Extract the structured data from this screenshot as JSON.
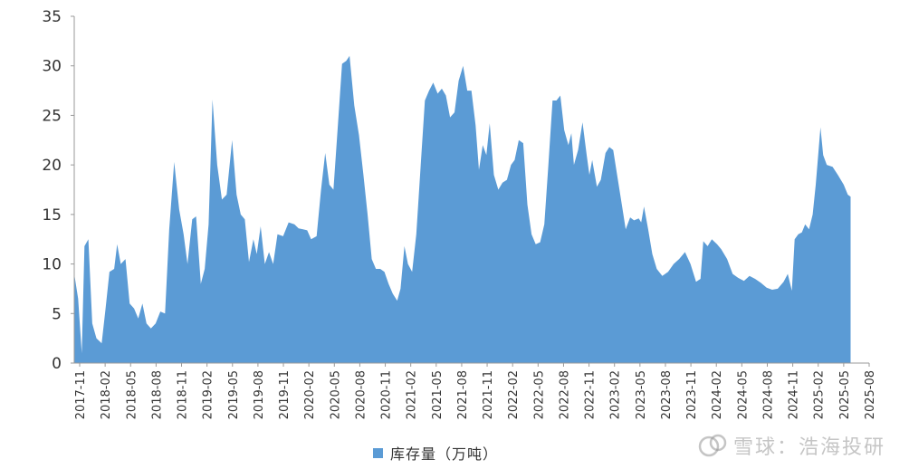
{
  "chart_data": {
    "type": "area",
    "ylim": [
      0,
      35
    ],
    "yticks": [
      0,
      5,
      10,
      15,
      20,
      25,
      30,
      35
    ],
    "xticks": [
      "2017-11",
      "2018-02",
      "2018-05",
      "2018-08",
      "2018-11",
      "2019-02",
      "2019-05",
      "2019-08",
      "2019-11",
      "2020-02",
      "2020-05",
      "2020-08",
      "2020-11",
      "2021-02",
      "2021-05",
      "2021-08",
      "2021-11",
      "2022-02",
      "2022-05",
      "2022-08",
      "2022-11",
      "2023-02",
      "2023-05",
      "2023-08",
      "2023-11",
      "2024-02",
      "2024-05",
      "2024-08",
      "2024-11",
      "2025-02",
      "2025-05",
      "2025-08"
    ],
    "x_start": "2017-11-01",
    "x_end": "2025-09-10",
    "grid": false,
    "legend_position": "bottom",
    "series": [
      {
        "name": "库存量（万吨）",
        "color": "#5b9bd5",
        "points": [
          [
            "2017-11-01",
            9.0
          ],
          [
            "2017-11-15",
            6.5
          ],
          [
            "2017-11-28",
            1.0
          ],
          [
            "2017-12-08",
            11.8
          ],
          [
            "2017-12-22",
            12.5
          ],
          [
            "2018-01-05",
            4.0
          ],
          [
            "2018-01-20",
            2.5
          ],
          [
            "2018-02-08",
            2.0
          ],
          [
            "2018-02-22",
            5.5
          ],
          [
            "2018-03-08",
            9.2
          ],
          [
            "2018-03-25",
            9.5
          ],
          [
            "2018-04-05",
            12.0
          ],
          [
            "2018-04-18",
            10.0
          ],
          [
            "2018-05-05",
            10.5
          ],
          [
            "2018-05-20",
            6.0
          ],
          [
            "2018-06-05",
            5.5
          ],
          [
            "2018-06-20",
            4.5
          ],
          [
            "2018-07-05",
            6.0
          ],
          [
            "2018-07-20",
            4.0
          ],
          [
            "2018-08-05",
            3.5
          ],
          [
            "2018-08-22",
            4.0
          ],
          [
            "2018-09-08",
            5.2
          ],
          [
            "2018-09-25",
            5.0
          ],
          [
            "2018-10-10",
            13.5
          ],
          [
            "2018-10-28",
            20.3
          ],
          [
            "2018-11-15",
            15.5
          ],
          [
            "2018-12-01",
            13.0
          ],
          [
            "2018-12-15",
            10.0
          ],
          [
            "2019-01-01",
            14.5
          ],
          [
            "2019-01-15",
            14.8
          ],
          [
            "2019-02-01",
            8.0
          ],
          [
            "2019-02-15",
            9.5
          ],
          [
            "2019-03-01",
            14.0
          ],
          [
            "2019-03-15",
            26.6
          ],
          [
            "2019-04-01",
            20.0
          ],
          [
            "2019-04-18",
            16.5
          ],
          [
            "2019-05-05",
            17.0
          ],
          [
            "2019-05-25",
            22.5
          ],
          [
            "2019-06-10",
            17.0
          ],
          [
            "2019-06-25",
            15.0
          ],
          [
            "2019-07-10",
            14.5
          ],
          [
            "2019-07-25",
            10.2
          ],
          [
            "2019-08-10",
            12.5
          ],
          [
            "2019-08-22",
            11.0
          ],
          [
            "2019-09-05",
            13.8
          ],
          [
            "2019-09-20",
            10.0
          ],
          [
            "2019-10-05",
            11.2
          ],
          [
            "2019-10-20",
            10.0
          ],
          [
            "2019-11-05",
            13.0
          ],
          [
            "2019-11-25",
            12.8
          ],
          [
            "2019-12-15",
            14.2
          ],
          [
            "2020-01-05",
            14.0
          ],
          [
            "2020-01-20",
            13.6
          ],
          [
            "2020-02-05",
            13.5
          ],
          [
            "2020-02-20",
            13.4
          ],
          [
            "2020-03-05",
            12.5
          ],
          [
            "2020-03-25",
            12.8
          ],
          [
            "2020-04-10",
            17.5
          ],
          [
            "2020-04-25",
            21.2
          ],
          [
            "2020-05-10",
            18.0
          ],
          [
            "2020-05-25",
            17.5
          ],
          [
            "2020-06-10",
            24.0
          ],
          [
            "2020-06-25",
            30.2
          ],
          [
            "2020-07-10",
            30.5
          ],
          [
            "2020-07-22",
            31.0
          ],
          [
            "2020-08-08",
            26.0
          ],
          [
            "2020-08-25",
            23.0
          ],
          [
            "2020-09-10",
            19.0
          ],
          [
            "2020-09-25",
            15.0
          ],
          [
            "2020-10-10",
            10.5
          ],
          [
            "2020-10-25",
            9.5
          ],
          [
            "2020-11-10",
            9.5
          ],
          [
            "2020-11-25",
            9.2
          ],
          [
            "2020-12-10",
            8.0
          ],
          [
            "2020-12-25",
            7.0
          ],
          [
            "2021-01-10",
            6.3
          ],
          [
            "2021-01-22",
            7.5
          ],
          [
            "2021-02-05",
            11.8
          ],
          [
            "2021-02-18",
            10.0
          ],
          [
            "2021-03-05",
            9.2
          ],
          [
            "2021-03-20",
            13.0
          ],
          [
            "2021-04-05",
            20.0
          ],
          [
            "2021-04-20",
            26.5
          ],
          [
            "2021-05-05",
            27.5
          ],
          [
            "2021-05-20",
            28.3
          ],
          [
            "2021-06-05",
            27.2
          ],
          [
            "2021-06-20",
            27.7
          ],
          [
            "2021-07-05",
            27.0
          ],
          [
            "2021-07-20",
            24.8
          ],
          [
            "2021-08-05",
            25.3
          ],
          [
            "2021-08-20",
            28.5
          ],
          [
            "2021-09-05",
            30.0
          ],
          [
            "2021-09-20",
            27.5
          ],
          [
            "2021-10-05",
            27.5
          ],
          [
            "2021-10-20",
            24.0
          ],
          [
            "2021-11-01",
            19.5
          ],
          [
            "2021-11-15",
            22.0
          ],
          [
            "2021-11-28",
            21.0
          ],
          [
            "2021-12-10",
            24.2
          ],
          [
            "2021-12-25",
            19.0
          ],
          [
            "2022-01-10",
            17.5
          ],
          [
            "2022-01-25",
            18.2
          ],
          [
            "2022-02-10",
            18.5
          ],
          [
            "2022-02-25",
            20.0
          ],
          [
            "2022-03-10",
            20.5
          ],
          [
            "2022-03-25",
            22.5
          ],
          [
            "2022-04-10",
            22.2
          ],
          [
            "2022-04-25",
            16.0
          ],
          [
            "2022-05-10",
            13.0
          ],
          [
            "2022-05-25",
            12.0
          ],
          [
            "2022-06-10",
            12.2
          ],
          [
            "2022-06-25",
            14.0
          ],
          [
            "2022-07-10",
            20.0
          ],
          [
            "2022-07-25",
            26.5
          ],
          [
            "2022-08-08",
            26.5
          ],
          [
            "2022-08-22",
            27.0
          ],
          [
            "2022-09-05",
            23.5
          ],
          [
            "2022-09-20",
            22.0
          ],
          [
            "2022-10-01",
            23.2
          ],
          [
            "2022-10-10",
            20.0
          ],
          [
            "2022-10-25",
            21.5
          ],
          [
            "2022-11-10",
            24.3
          ],
          [
            "2022-11-25",
            21.0
          ],
          [
            "2022-12-05",
            19.0
          ],
          [
            "2022-12-15",
            20.5
          ],
          [
            "2023-01-01",
            17.8
          ],
          [
            "2023-01-15",
            18.5
          ],
          [
            "2023-02-01",
            21.2
          ],
          [
            "2023-02-15",
            21.8
          ],
          [
            "2023-03-01",
            21.5
          ],
          [
            "2023-03-15",
            19.0
          ],
          [
            "2023-04-01",
            16.0
          ],
          [
            "2023-04-15",
            13.5
          ],
          [
            "2023-05-01",
            14.7
          ],
          [
            "2023-05-15",
            14.4
          ],
          [
            "2023-06-01",
            14.6
          ],
          [
            "2023-06-10",
            14.2
          ],
          [
            "2023-06-20",
            15.8
          ],
          [
            "2023-07-05",
            13.5
          ],
          [
            "2023-07-20",
            11.0
          ],
          [
            "2023-08-05",
            9.5
          ],
          [
            "2023-08-25",
            8.8
          ],
          [
            "2023-09-15",
            9.2
          ],
          [
            "2023-10-05",
            10.0
          ],
          [
            "2023-10-25",
            10.5
          ],
          [
            "2023-11-15",
            11.2
          ],
          [
            "2023-12-05",
            10.0
          ],
          [
            "2023-12-25",
            8.2
          ],
          [
            "2024-01-10",
            8.5
          ],
          [
            "2024-01-20",
            12.3
          ],
          [
            "2024-02-05",
            11.8
          ],
          [
            "2024-02-20",
            12.5
          ],
          [
            "2024-03-10",
            12.0
          ],
          [
            "2024-03-25",
            11.5
          ],
          [
            "2024-04-15",
            10.5
          ],
          [
            "2024-05-05",
            9.0
          ],
          [
            "2024-05-25",
            8.6
          ],
          [
            "2024-06-15",
            8.3
          ],
          [
            "2024-07-05",
            8.8
          ],
          [
            "2024-07-25",
            8.5
          ],
          [
            "2024-08-15",
            8.1
          ],
          [
            "2024-09-05",
            7.6
          ],
          [
            "2024-09-25",
            7.4
          ],
          [
            "2024-10-15",
            7.5
          ],
          [
            "2024-11-05",
            8.2
          ],
          [
            "2024-11-20",
            9.0
          ],
          [
            "2024-12-05",
            7.3
          ],
          [
            "2024-12-15",
            12.5
          ],
          [
            "2024-12-28",
            13.0
          ],
          [
            "2025-01-10",
            13.2
          ],
          [
            "2025-01-22",
            14.0
          ],
          [
            "2025-02-05",
            13.5
          ],
          [
            "2025-02-18",
            15.0
          ],
          [
            "2025-03-01",
            18.0
          ],
          [
            "2025-03-10",
            21.0
          ],
          [
            "2025-03-18",
            23.8
          ],
          [
            "2025-03-28",
            21.0
          ],
          [
            "2025-04-10",
            20.0
          ],
          [
            "2025-05-01",
            19.8
          ],
          [
            "2025-05-20",
            19.0
          ],
          [
            "2025-06-10",
            18.0
          ],
          [
            "2025-06-25",
            17.0
          ],
          [
            "2025-07-05",
            16.8
          ]
        ]
      }
    ]
  },
  "legend": {
    "label": "库存量（万吨）",
    "color": "#5b9bd5"
  },
  "watermark": {
    "text": "雪球：浩海投研",
    "icon": "snowball-logo-icon"
  }
}
